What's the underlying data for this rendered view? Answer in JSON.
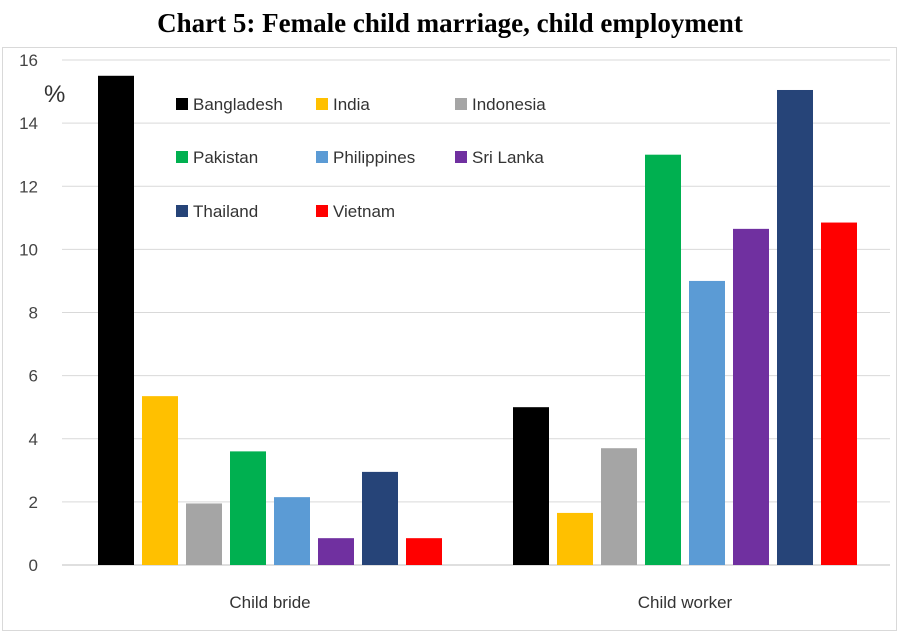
{
  "chart_data": {
    "type": "bar",
    "title": "Chart 5: Female child marriage, child employment",
    "ylabel": "%",
    "xlabel": "",
    "ylim": [
      0,
      16
    ],
    "yticks": [
      0,
      2,
      4,
      6,
      8,
      10,
      12,
      14,
      16
    ],
    "grid": true,
    "legend_position": "top-left (inside plot)",
    "categories": [
      "Child bride",
      "Child worker"
    ],
    "series": [
      {
        "name": "Bangladesh",
        "color": "#000000",
        "values": [
          15.5,
          5.0
        ]
      },
      {
        "name": "India",
        "color": "#FFC000",
        "values": [
          5.35,
          1.65
        ]
      },
      {
        "name": "Indonesia",
        "color": "#A5A5A5",
        "values": [
          1.95,
          3.7
        ]
      },
      {
        "name": "Pakistan",
        "color": "#00B050",
        "values": [
          3.6,
          13.0
        ]
      },
      {
        "name": "Philippines",
        "color": "#5B9BD5",
        "values": [
          2.15,
          9.0
        ]
      },
      {
        "name": "Sri Lanka",
        "color": "#7030A0",
        "values": [
          0.85,
          10.65
        ]
      },
      {
        "name": "Thailand",
        "color": "#264478",
        "values": [
          2.95,
          15.05
        ]
      },
      {
        "name": "Vietnam",
        "color": "#FF0000",
        "values": [
          0.85,
          10.85
        ]
      }
    ]
  }
}
